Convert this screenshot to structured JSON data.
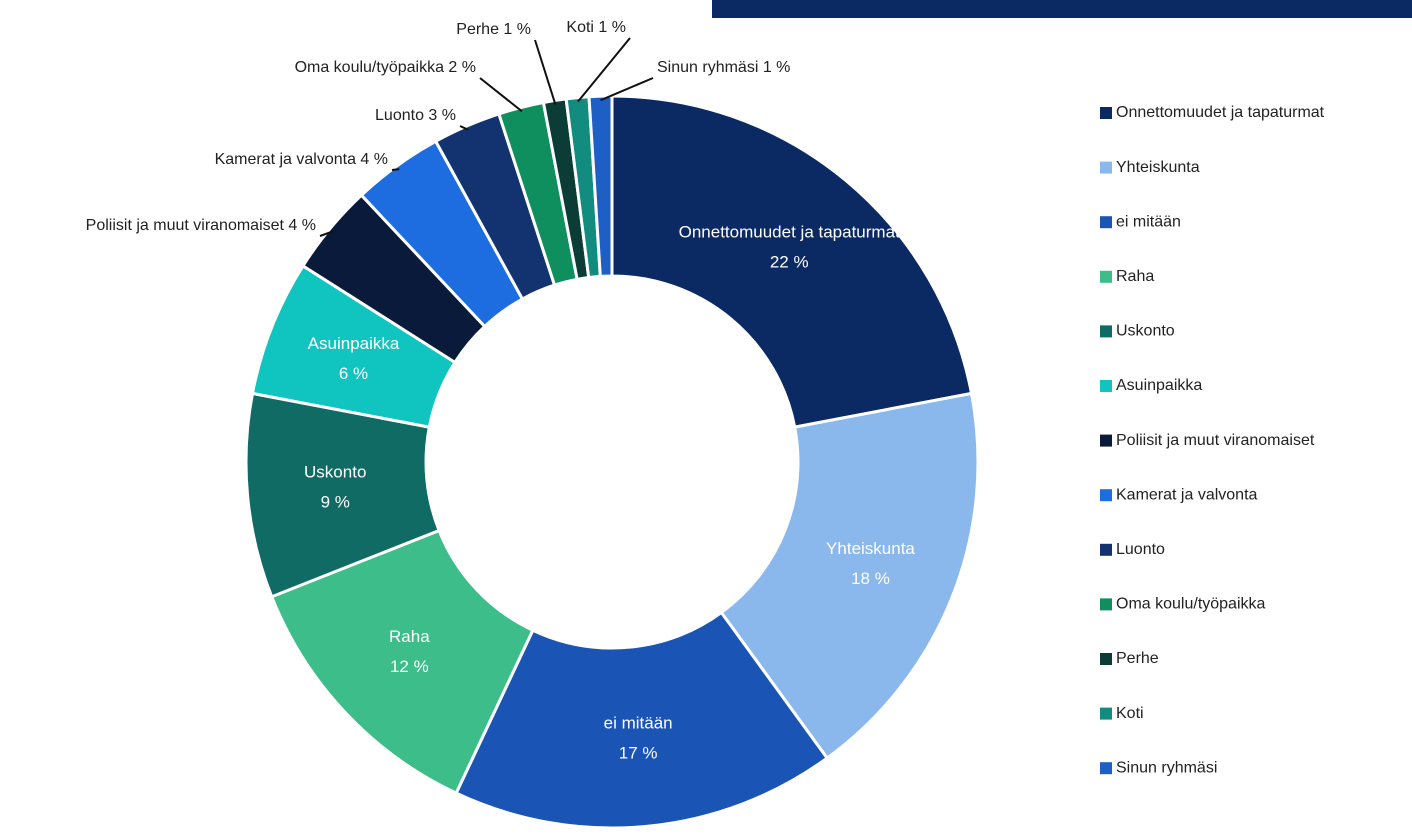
{
  "chart_data": {
    "type": "donut",
    "categories": [
      "Onnettomuudet ja tapaturmat",
      "Yhteiskunta",
      "ei mitään",
      "Raha",
      "Uskonto",
      "Asuinpaikka",
      "Poliisit ja muut viranomaiset",
      "Kamerat ja valvonta",
      "Luonto",
      "Oma koulu/työpaikka",
      "Perhe",
      "Koti",
      "Sinun ryhmäsi"
    ],
    "values": [
      22,
      18,
      17,
      12,
      9,
      6,
      4,
      4,
      3,
      2,
      1,
      1,
      1
    ],
    "value_labels": [
      "22 %",
      "18 %",
      "17 %",
      "12 %",
      "9 %",
      "6 %",
      "4 %",
      "4 %",
      "3 %",
      "2 %",
      "1 %",
      "1 %",
      "1 %"
    ],
    "colors": [
      "#0b2a63",
      "#8ab8ec",
      "#1a55b5",
      "#3dbd8a",
      "#0f6b63",
      "#10c4c0",
      "#0a1a3a",
      "#1d6ce0",
      "#12336f",
      "#0f8f5e",
      "#0b3d36",
      "#138c80",
      "#1e5fc6"
    ],
    "legend": "right"
  }
}
